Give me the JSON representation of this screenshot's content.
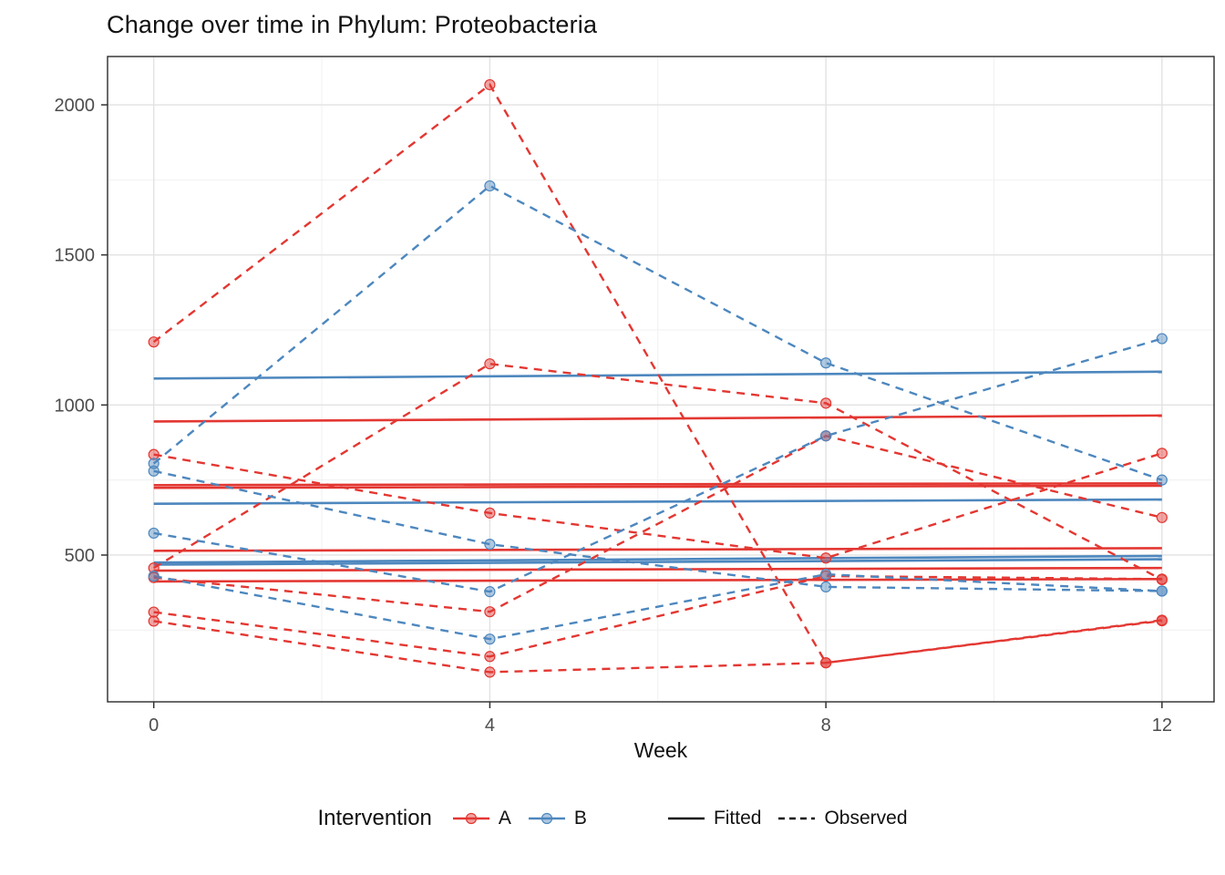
{
  "page_title": "Change over time in Phylum: Proteobacteria",
  "chart_data": {
    "type": "line",
    "title": "Change over time in Phylum: Proteobacteria",
    "xlabel": "Week",
    "ylabel": "",
    "x_ticks": [
      0,
      4,
      8,
      12
    ],
    "x_minor_gridlines": [
      2,
      6,
      10
    ],
    "y_ticks": [
      500,
      1000,
      1500,
      2000
    ],
    "y_minor_gridlines": [
      250,
      750,
      1250,
      1750
    ],
    "x_domain": [
      -0.55,
      12.62
    ],
    "y_domain": [
      11,
      2161
    ],
    "weeks": [
      0,
      4,
      8,
      12
    ],
    "grid": true,
    "legend_position": "bottom",
    "colors": {
      "A": "#e33732",
      "B": "#4d87be",
      "grid_major": "#e2e2e2",
      "grid_minor": "#f0f0f0",
      "axis_text": "#4d4d4d",
      "panel_border": "#2b2b2b",
      "linetype_key": "#111111"
    },
    "legend": {
      "title": "Intervention",
      "groups": [
        {
          "label": "A",
          "group": "A"
        },
        {
          "label": "B",
          "group": "B"
        }
      ],
      "linetypes": [
        {
          "label": "Fitted",
          "style": "solid"
        },
        {
          "label": "Observed",
          "style": "dashed"
        }
      ]
    },
    "series": [
      {
        "group": "A",
        "observed": [
          1210,
          2067,
          141,
          281
        ],
        "fitted": [
          945,
          965
        ]
      },
      {
        "group": "A",
        "observed": [
          457,
          1137,
          1006,
          418
        ],
        "fitted": [
          733,
          739
        ]
      },
      {
        "group": "A",
        "observed": [
          835,
          640,
          490,
          839
        ],
        "fitted": [
          724,
          731
        ]
      },
      {
        "group": "A",
        "observed": [
          425,
          311,
          897,
          625
        ],
        "fitted": [
          514,
          523
        ]
      },
      {
        "group": "A",
        "observed": [
          310,
          162,
          430,
          420
        ],
        "fitted": [
          448,
          457
        ]
      },
      {
        "group": "A",
        "observed": [
          280,
          110,
          141,
          283
        ],
        "fitted": [
          412,
          420
        ]
      },
      {
        "group": "B",
        "observed": [
          805,
          1730,
          1140,
          750
        ],
        "fitted": [
          1088,
          1111
        ]
      },
      {
        "group": "B",
        "observed": [
          780,
          536,
          394,
          380
        ],
        "fitted": [
          671,
          685
        ]
      },
      {
        "group": "B",
        "observed": [
          573,
          378,
          897,
          1221
        ],
        "fitted": [
          475,
          497
        ]
      },
      {
        "group": "B",
        "observed": [
          430,
          220,
          436,
          380
        ],
        "fitted": [
          468,
          486
        ]
      }
    ]
  }
}
